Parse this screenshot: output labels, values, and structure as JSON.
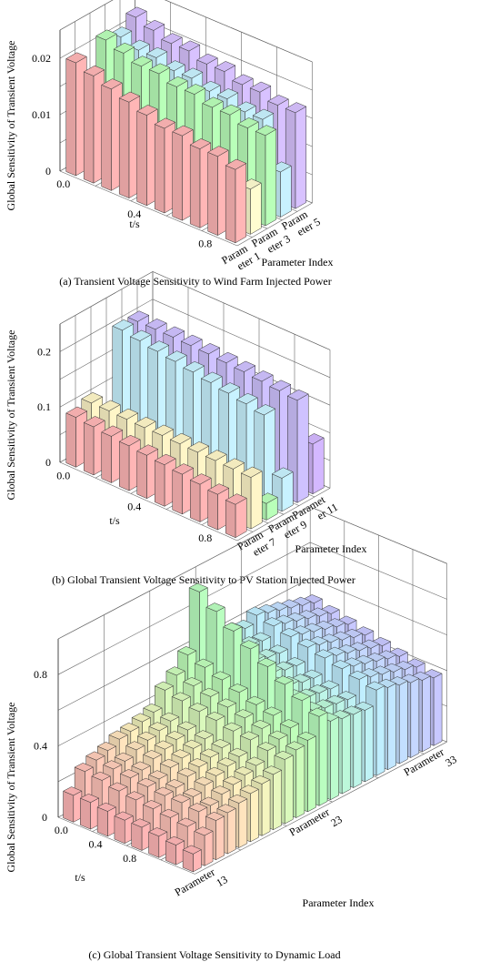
{
  "chart_data": [
    {
      "type": "bar3d",
      "caption": "(a) Transient Voltage Sensitivity to Wind Farm Injected Power",
      "xlabel": "t/s",
      "ylabel": "Parameter Index",
      "zlabel": "Global Sensitivity of Transient Voltage",
      "t_ticks": [
        "0.0",
        "0.4",
        "0.8"
      ],
      "z_ticks": [
        "0",
        "0.01",
        "0.02"
      ],
      "zlim": [
        0,
        0.025
      ],
      "param_tick_labels": [
        {
          "line1": "Param",
          "line2": "eter 1"
        },
        {
          "line1": "Param",
          "line2": "eter 3"
        },
        {
          "line1": "Param",
          "line2": "eter 5"
        }
      ],
      "t": [
        0.0,
        0.1,
        0.2,
        0.3,
        0.4,
        0.5,
        0.6,
        0.7,
        0.8,
        0.9
      ],
      "parameters": [
        1,
        2,
        3,
        4,
        5
      ],
      "values": [
        [
          0.02,
          0.019,
          0.018,
          0.017,
          0.016,
          0.015,
          0.015,
          0.014,
          0.014,
          0.013
        ],
        [
          0.009,
          0.009,
          0.009,
          0.009,
          0.009,
          0.009,
          0.009,
          0.009,
          0.009,
          0.008
        ],
        [
          0.021,
          0.02,
          0.019,
          0.019,
          0.018,
          0.018,
          0.017,
          0.017,
          0.016,
          0.016
        ],
        [
          0.02,
          0.019,
          0.019,
          0.018,
          0.018,
          0.017,
          0.017,
          0.016,
          0.016,
          0.008
        ],
        [
          0.022,
          0.021,
          0.02,
          0.02,
          0.019,
          0.019,
          0.018,
          0.018,
          0.017,
          0.017
        ]
      ]
    },
    {
      "type": "bar3d",
      "caption": "(b) Global Transient Voltage Sensitivity to PV Station Injected Power",
      "xlabel": "t/s",
      "ylabel": "Parameter Index",
      "zlabel": "Global Sensitivity of Transient Voltage",
      "t_ticks": [
        "0.0",
        "0.4",
        "0.8"
      ],
      "z_ticks": [
        "0",
        "0.1",
        "0.2"
      ],
      "zlim": [
        0,
        0.25
      ],
      "param_tick_labels": [
        {
          "line1": "Param",
          "line2": "eter 7"
        },
        {
          "line1": "Param",
          "line2": "eter 9"
        },
        {
          "line1": "Paramet",
          "line2": "er 11"
        }
      ],
      "t": [
        0.0,
        0.1,
        0.2,
        0.3,
        0.4,
        0.5,
        0.6,
        0.7,
        0.8,
        0.9
      ],
      "parameters": [
        6,
        7,
        8,
        9,
        10,
        11
      ],
      "values": [
        [
          0.09,
          0.087,
          0.084,
          0.081,
          0.078,
          0.075,
          0.072,
          0.068,
          0.064,
          0.06
        ],
        [
          0.1,
          0.1,
          0.099,
          0.098,
          0.098,
          0.097,
          0.096,
          0.095,
          0.094,
          0.093
        ],
        [
          0.03,
          0.03,
          0.03,
          0.03,
          0.03,
          0.03,
          0.03,
          0.03,
          0.03,
          0.03
        ],
        [
          0.2,
          0.195,
          0.19,
          0.186,
          0.181,
          0.176,
          0.171,
          0.166,
          0.16,
          0.06
        ],
        [
          0.2,
          0.2,
          0.2,
          0.199,
          0.198,
          0.196,
          0.194,
          0.191,
          0.188,
          0.185
        ],
        [
          0.09,
          0.09,
          0.09,
          0.09,
          0.09,
          0.09,
          0.09,
          0.09,
          0.09,
          0.09
        ]
      ]
    },
    {
      "type": "bar3d",
      "caption": "(c) Global Transient Voltage Sensitivity to Dynamic Load",
      "xlabel": "t/s",
      "ylabel": "Parameter Index",
      "zlabel": "Global Sensitivity of Transient Voltage",
      "t_ticks": [
        "0.0",
        "0.4",
        "0.8"
      ],
      "z_ticks": [
        "0",
        "0.4",
        "0.8"
      ],
      "zlim": [
        0,
        1.0
      ],
      "param_tick_labels": [
        {
          "line1": "Parameter",
          "line2": "13"
        },
        {
          "line1": "Parameter",
          "line2": "23"
        },
        {
          "line1": "Parameter",
          "line2": "33"
        }
      ],
      "t": [
        0.0,
        0.1,
        0.2,
        0.3,
        0.4,
        0.5,
        0.6,
        0.7
      ],
      "parameters": [
        12,
        13,
        14,
        15,
        16,
        17,
        18,
        19,
        20,
        21,
        22,
        23,
        24,
        25,
        26,
        27,
        28,
        29,
        30,
        31,
        32,
        33
      ],
      "values": [
        [
          0.15,
          0.15,
          0.14,
          0.13,
          0.13,
          0.12,
          0.11,
          0.1
        ],
        [
          0.25,
          0.24,
          0.22,
          0.21,
          0.2,
          0.19,
          0.18,
          0.17
        ],
        [
          0.28,
          0.27,
          0.26,
          0.25,
          0.24,
          0.24,
          0.23,
          0.22
        ],
        [
          0.3,
          0.28,
          0.27,
          0.26,
          0.25,
          0.24,
          0.23,
          0.23
        ],
        [
          0.33,
          0.31,
          0.3,
          0.29,
          0.28,
          0.27,
          0.26,
          0.25
        ],
        [
          0.34,
          0.33,
          0.32,
          0.31,
          0.3,
          0.29,
          0.28,
          0.27
        ],
        [
          0.36,
          0.35,
          0.34,
          0.33,
          0.32,
          0.31,
          0.3,
          0.29
        ],
        [
          0.38,
          0.37,
          0.36,
          0.35,
          0.34,
          0.33,
          0.32,
          0.31
        ],
        [
          0.47,
          0.45,
          0.43,
          0.42,
          0.4,
          0.39,
          0.37,
          0.36
        ],
        [
          0.52,
          0.5,
          0.48,
          0.46,
          0.44,
          0.42,
          0.4,
          0.38
        ],
        [
          0.6,
          0.57,
          0.54,
          0.51,
          0.48,
          0.46,
          0.43,
          0.4
        ],
        [
          0.92,
          0.85,
          0.78,
          0.72,
          0.66,
          0.6,
          0.55,
          0.5
        ],
        [
          0.66,
          0.62,
          0.58,
          0.55,
          0.52,
          0.49,
          0.46,
          0.44
        ],
        [
          0.62,
          0.58,
          0.55,
          0.52,
          0.49,
          0.46,
          0.44,
          0.42
        ],
        [
          0.6,
          0.56,
          0.53,
          0.5,
          0.47,
          0.45,
          0.43,
          0.41
        ],
        [
          0.58,
          0.55,
          0.52,
          0.49,
          0.46,
          0.44,
          0.42,
          0.4
        ],
        [
          0.62,
          0.6,
          0.58,
          0.56,
          0.54,
          0.52,
          0.5,
          0.48
        ],
        [
          0.6,
          0.58,
          0.56,
          0.54,
          0.52,
          0.5,
          0.48,
          0.46
        ],
        [
          0.58,
          0.56,
          0.54,
          0.52,
          0.5,
          0.48,
          0.46,
          0.44
        ],
        [
          0.56,
          0.54,
          0.52,
          0.5,
          0.48,
          0.46,
          0.44,
          0.42
        ],
        [
          0.54,
          0.52,
          0.5,
          0.48,
          0.46,
          0.44,
          0.42,
          0.4
        ],
        [
          0.52,
          0.5,
          0.48,
          0.46,
          0.44,
          0.42,
          0.4,
          0.38
        ]
      ]
    }
  ]
}
